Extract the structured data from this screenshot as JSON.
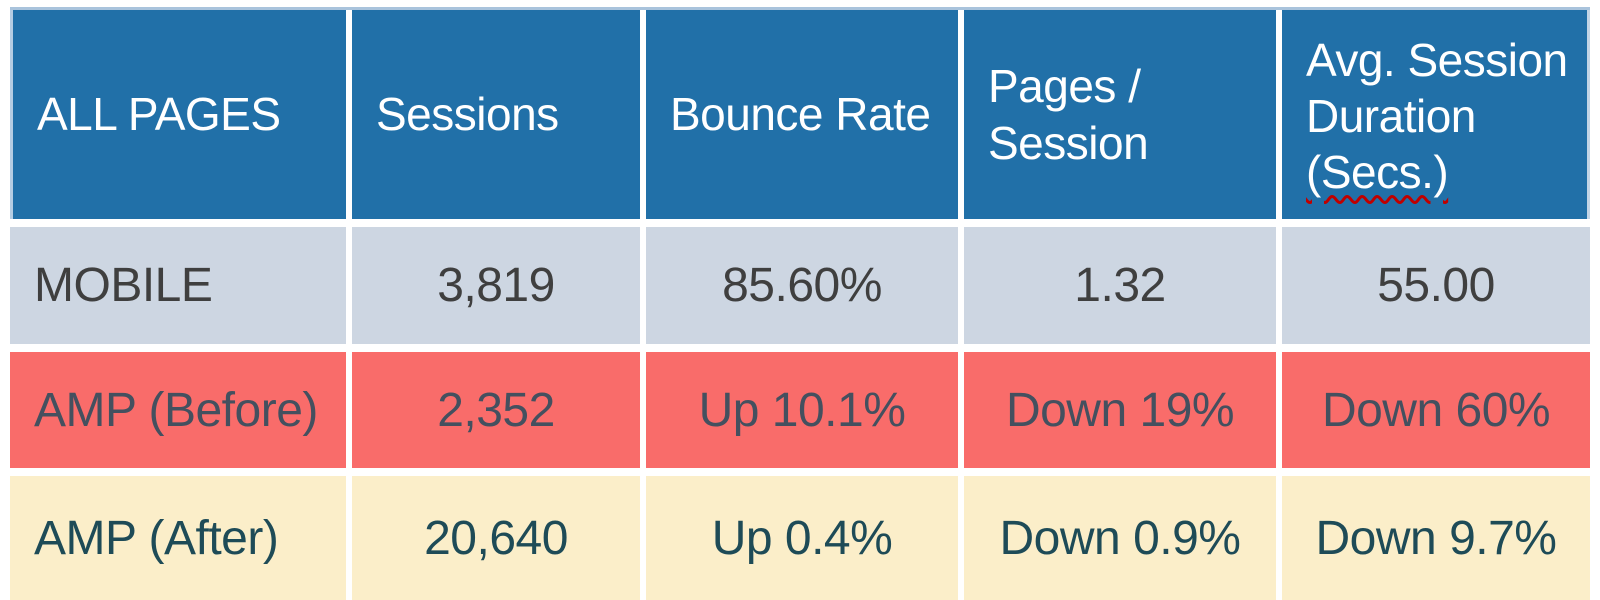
{
  "colors": {
    "header_bg": "#2170A8",
    "header_text": "#FFFFFF",
    "mobile_row_bg": "#CDD6E2",
    "mobile_row_text": "#3F3F3F",
    "amp_before_row_bg": "#F96C6A",
    "amp_before_row_text": "#44505F",
    "amp_after_row_bg": "#FBEEC9",
    "amp_after_row_text": "#1E4B57",
    "table_border": "#A9C3DC",
    "spellcheck_underline": "#C00000"
  },
  "table": {
    "corner_label": "ALL PAGES",
    "columns": [
      "Sessions",
      "Bounce Rate",
      "Pages / Session"
    ],
    "avg_col_lines": [
      "Avg. Session",
      "Duration",
      "(Secs.)"
    ],
    "rows": [
      {
        "label": "MOBILE",
        "values": [
          "3,819",
          "85.60%",
          "1.32",
          "55.00"
        ]
      },
      {
        "label": "AMP (Before)",
        "values": [
          "2,352",
          "Up 10.1%",
          "Down 19%",
          "Down 60%"
        ]
      },
      {
        "label": "AMP (After)",
        "values": [
          "20,640",
          "Up 0.4%",
          "Down 0.9%",
          "Down 9.7%"
        ]
      }
    ]
  }
}
